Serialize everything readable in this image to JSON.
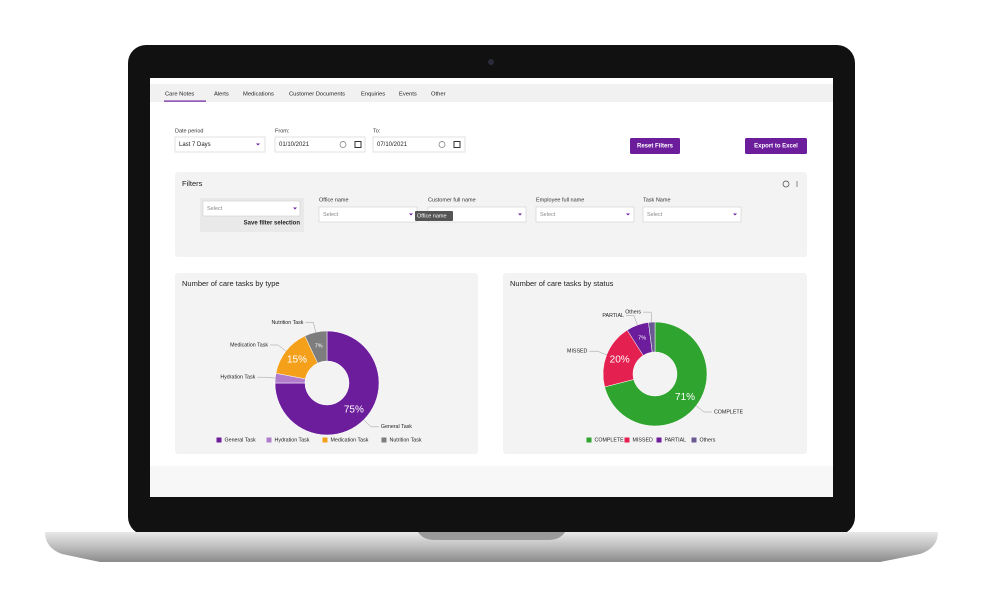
{
  "tabs": [
    "Care Notes",
    "Alerts",
    "Medications",
    "Customer Documents",
    "Enquiries",
    "Events",
    "Other"
  ],
  "date_filters": {
    "period_label": "Date period",
    "period_value": "Last 7 Days",
    "from_label": "From:",
    "from_value": "01/10/2021",
    "to_label": "To:",
    "to_value": "07/10/2021"
  },
  "buttons": {
    "reset": "Reset Filters",
    "export": "Export to Excel"
  },
  "filters": {
    "title": "Filters",
    "saved_placeholder": "Select",
    "save_label": "Save filter selection",
    "tooltip": "Office name",
    "columns": [
      {
        "label": "Office name",
        "placeholder": "Select"
      },
      {
        "label": "Customer full name",
        "placeholder": "Select"
      },
      {
        "label": "Employee full name",
        "placeholder": "Select"
      },
      {
        "label": "Task Name",
        "placeholder": "Select"
      }
    ]
  },
  "chart_data": [
    {
      "type": "donut",
      "title": "Number of care tasks by type",
      "categories": [
        "General Task",
        "Hydration Task",
        "Medication Task",
        "Nutrition Task"
      ],
      "values": [
        75,
        3,
        15,
        7
      ],
      "value_labels": [
        "75%",
        null,
        "15%",
        "7%"
      ],
      "colors": [
        "#6c1d9c",
        "#b17ccb",
        "#f5a01b",
        "#7d7d7d"
      ],
      "legend": "bottom"
    },
    {
      "type": "donut",
      "title": "Number of care tasks by status",
      "categories": [
        "COMPLETE",
        "MISSED",
        "PARTIAL",
        "Others"
      ],
      "values": [
        71,
        20,
        7,
        2
      ],
      "value_labels": [
        "71%",
        "20%",
        "7%",
        null
      ],
      "colors": [
        "#2fa52f",
        "#e3204f",
        "#6c1d9c",
        "#6a5a94"
      ],
      "legend": "bottom"
    }
  ]
}
